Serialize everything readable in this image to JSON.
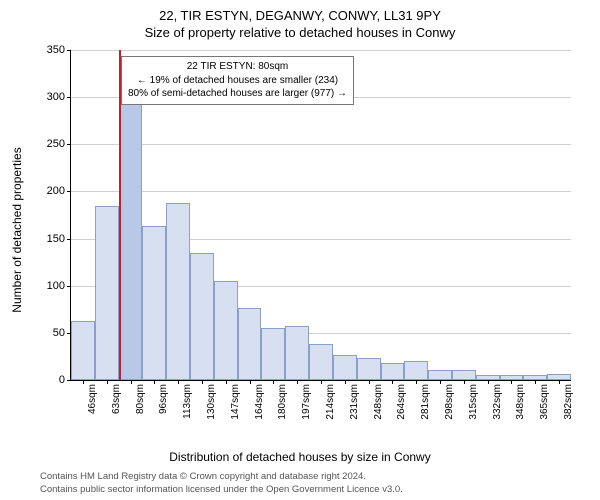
{
  "titles": {
    "main": "22, TIR ESTYN, DEGANWY, CONWY, LL31 9PY",
    "sub": "Size of property relative to detached houses in Conwy"
  },
  "axes": {
    "ylabel": "Number of detached properties",
    "xlabel": "Distribution of detached houses by size in Conwy"
  },
  "chart": {
    "type": "histogram",
    "ylim": [
      0,
      350
    ],
    "ytick_step": 50,
    "bar_fill": "#d6e0f0",
    "bar_stroke": "#8aa0c8",
    "highlight_fill": "#b8c8e8",
    "grid_color": "#d0d0d0",
    "background_color": "#ffffff",
    "marker_color": "#c02030",
    "categories": [
      "46sqm",
      "63sqm",
      "80sqm",
      "96sqm",
      "113sqm",
      "130sqm",
      "147sqm",
      "164sqm",
      "180sqm",
      "197sqm",
      "214sqm",
      "231sqm",
      "248sqm",
      "264sqm",
      "281sqm",
      "298sqm",
      "315sqm",
      "332sqm",
      "348sqm",
      "365sqm",
      "382sqm"
    ],
    "values": [
      63,
      185,
      310,
      163,
      188,
      135,
      105,
      76,
      55,
      57,
      38,
      27,
      23,
      18,
      20,
      11,
      11,
      5,
      5,
      5,
      6
    ],
    "highlight_index": 2,
    "marker_position": 2
  },
  "annotation": {
    "line1": "22 TIR ESTYN: 80sqm",
    "line2": "← 19% of detached houses are smaller (234)",
    "line3": "80% of semi-detached houses are larger (977) →"
  },
  "footer": {
    "line1": "Contains HM Land Registry data © Crown copyright and database right 2024.",
    "line2": "Contains public sector information licensed under the Open Government Licence v3.0."
  }
}
